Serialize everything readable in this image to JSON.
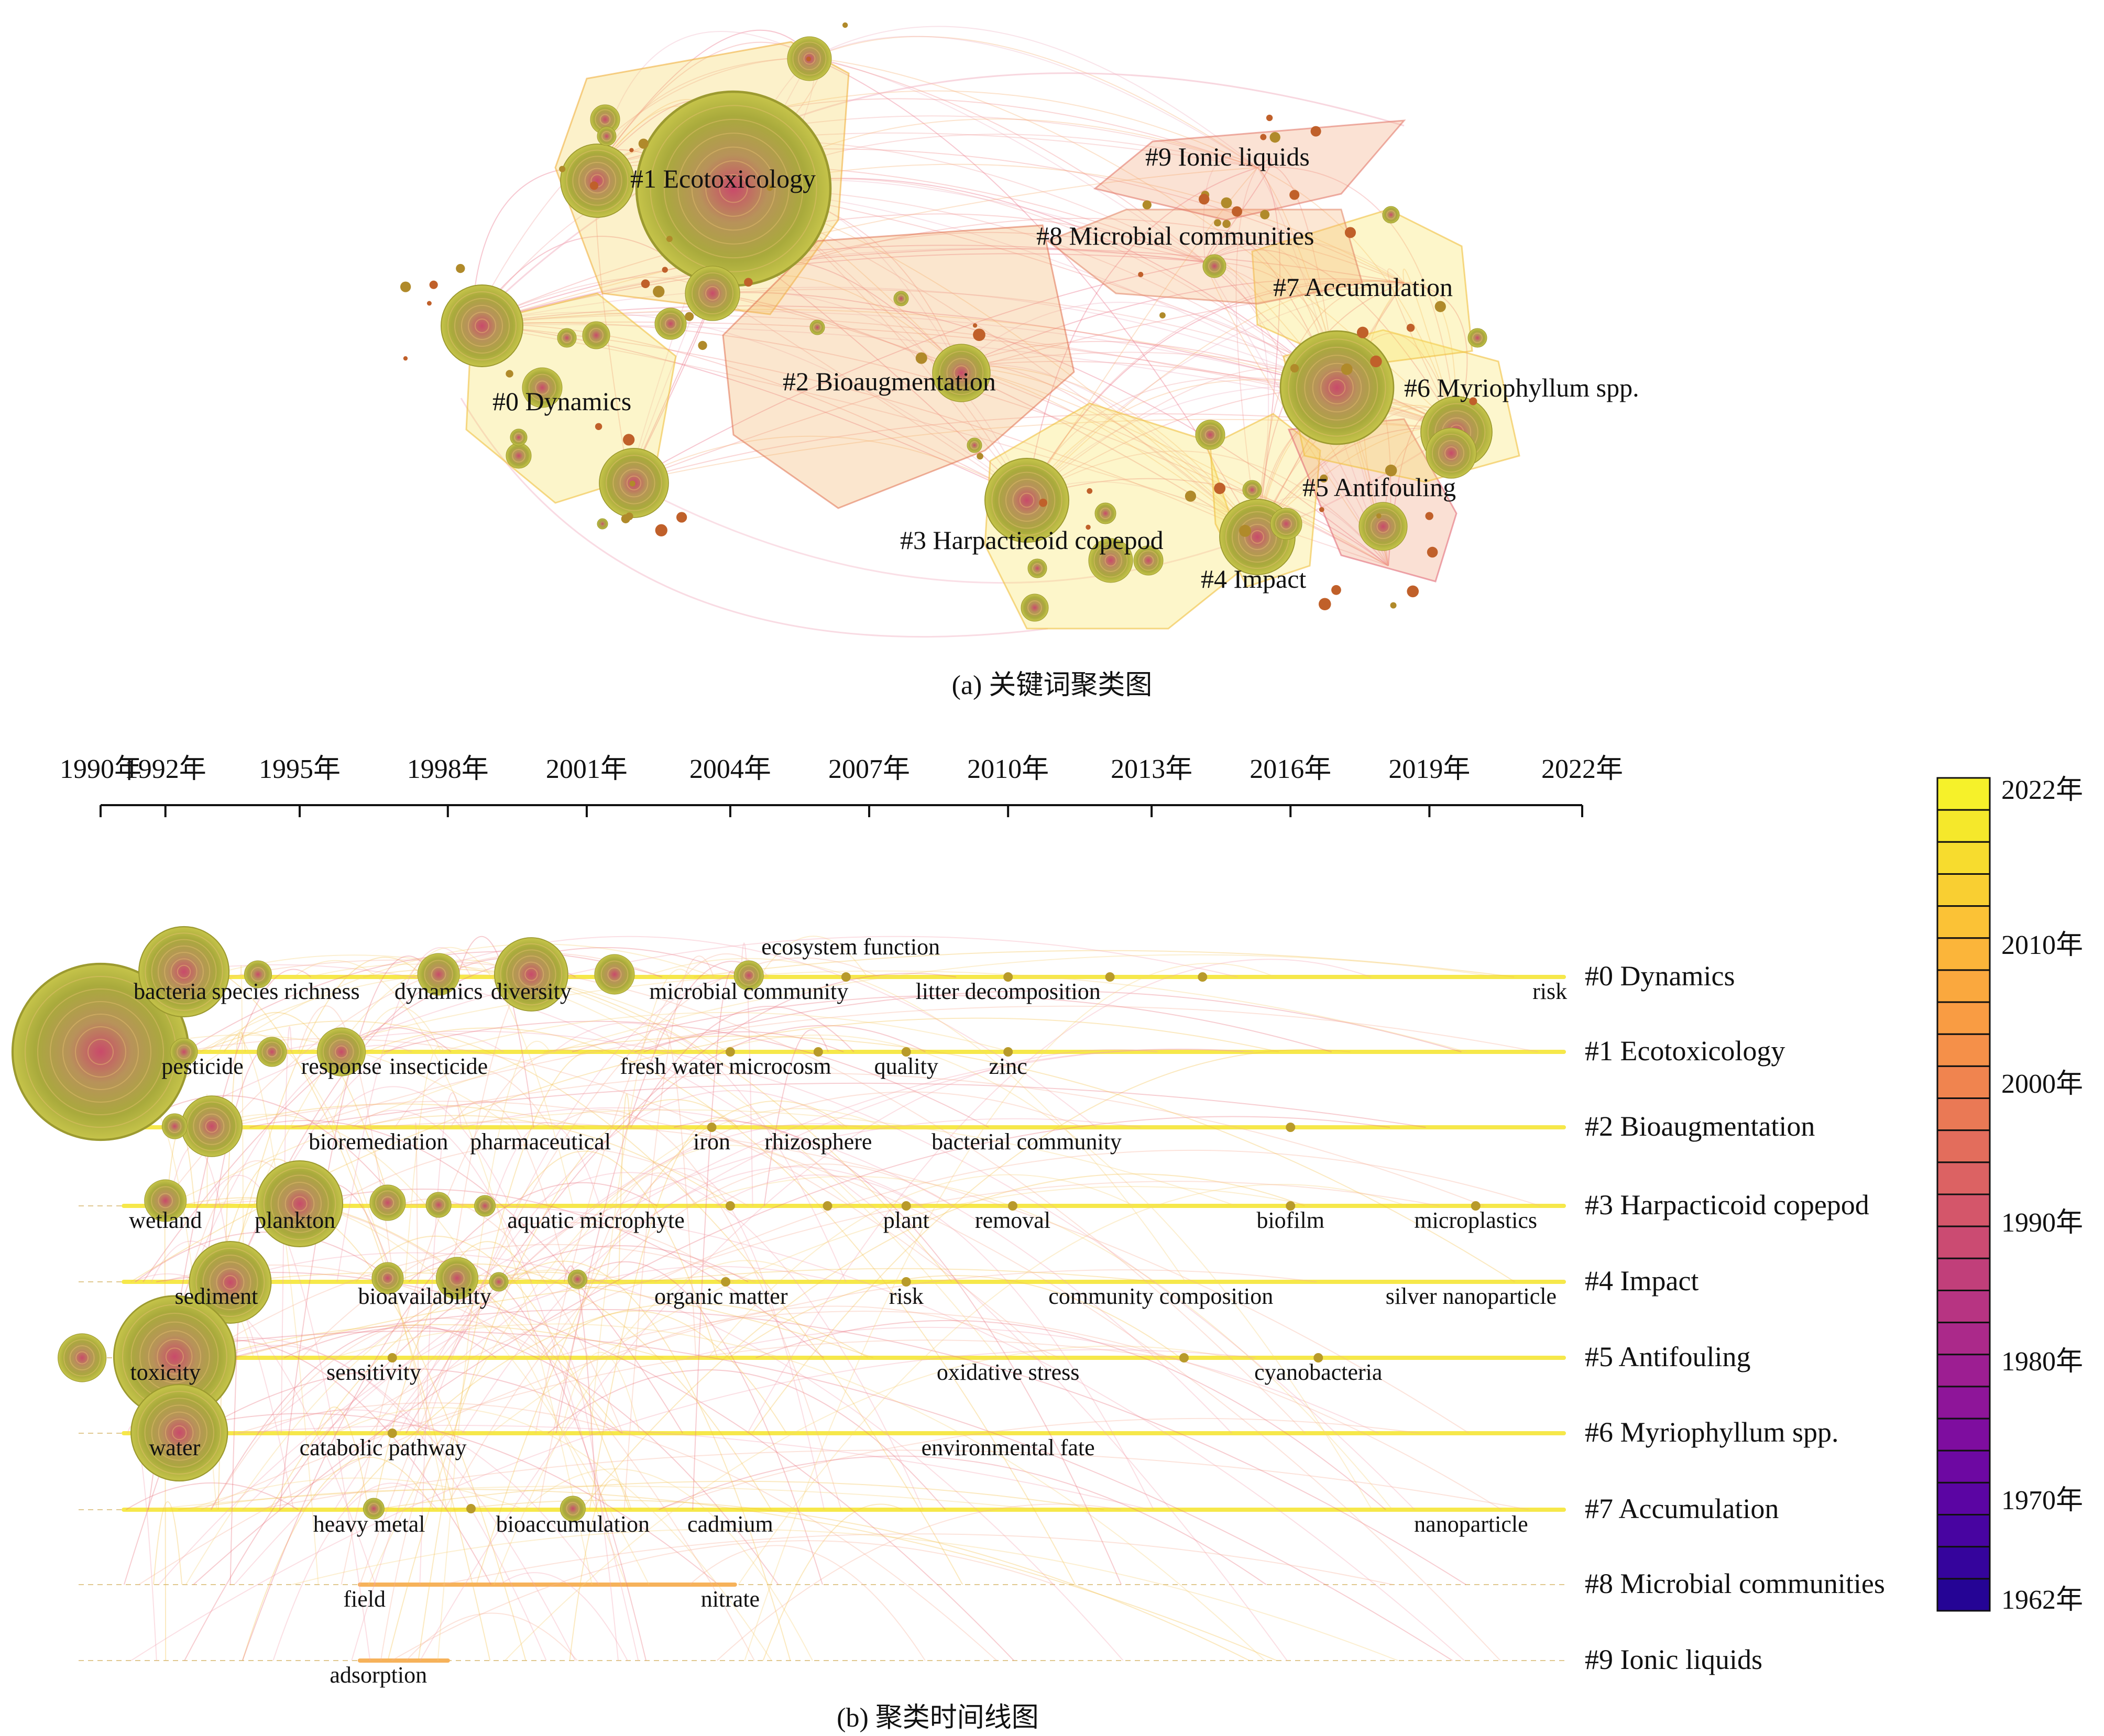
{
  "panel_a": {
    "caption": "(a) 关键词聚类图",
    "clusters": [
      {
        "id": 0,
        "label": "#0 Dynamics"
      },
      {
        "id": 1,
        "label": "#1 Ecotoxicology"
      },
      {
        "id": 2,
        "label": "#2 Bioaugmentation"
      },
      {
        "id": 3,
        "label": "#3 Harpacticoid copepod"
      },
      {
        "id": 4,
        "label": "#4 Impact"
      },
      {
        "id": 5,
        "label": "#5 Antifouling"
      },
      {
        "id": 6,
        "label": "#6 Myriophyllum spp."
      },
      {
        "id": 7,
        "label": "#7 Accumulation"
      },
      {
        "id": 8,
        "label": "#8 Microbial communities"
      },
      {
        "id": 9,
        "label": "#9 Ionic liquids"
      }
    ]
  },
  "panel_b": {
    "caption": "(b) 聚类时间线图",
    "axis_ticks": [
      {
        "label": "1990年",
        "year": 1990
      },
      {
        "label": "1992年",
        "year": 1991.4
      },
      {
        "label": "1995年",
        "year": 1994.3
      },
      {
        "label": "1998年",
        "year": 1997.5
      },
      {
        "label": "2001年",
        "year": 2000.5
      },
      {
        "label": "2004年",
        "year": 2003.6
      },
      {
        "label": "2007年",
        "year": 2006.6
      },
      {
        "label": "2010年",
        "year": 2009.6
      },
      {
        "label": "2013年",
        "year": 2012.7
      },
      {
        "label": "2016年",
        "year": 2015.7
      },
      {
        "label": "2019年",
        "year": 2018.7
      },
      {
        "label": "2022年",
        "year": 2022
      }
    ],
    "rows": [
      {
        "label": "#0 Dynamics",
        "keywords": [
          {
            "text": "bacteria",
            "year": 1991.5
          },
          {
            "text": "species richness",
            "year": 1994
          },
          {
            "text": "dynamics",
            "year": 1997.3
          },
          {
            "text": "diversity",
            "year": 1999.3
          },
          {
            "text": "microbial community",
            "year": 2004
          },
          {
            "text": "ecosystem function",
            "year": 2006.2,
            "upper": true
          },
          {
            "text": "litter decomposition",
            "year": 2009.6
          },
          {
            "text": "risk",
            "year": 2021.3
          }
        ]
      },
      {
        "label": "#1 Ecotoxicology",
        "keywords": [
          {
            "text": "pesticide",
            "year": 1992.2
          },
          {
            "text": "response",
            "year": 1995.2
          },
          {
            "text": "insecticide",
            "year": 1997.3
          },
          {
            "text": "fresh water microcosm",
            "year": 2003.5
          },
          {
            "text": "quality",
            "year": 2007.4
          },
          {
            "text": "zinc",
            "year": 2009.6
          }
        ]
      },
      {
        "label": "#2 Bioaugmentation",
        "keywords": [
          {
            "text": "bioremediation",
            "year": 1996
          },
          {
            "text": "pharmaceutical",
            "year": 1999.5
          },
          {
            "text": "iron",
            "year": 2003.2
          },
          {
            "text": "rhizosphere",
            "year": 2005.5
          },
          {
            "text": "bacterial community",
            "year": 2010
          }
        ]
      },
      {
        "label": "#3 Harpacticoid copepod",
        "keywords": [
          {
            "text": "wetland",
            "year": 1991.4
          },
          {
            "text": "plankton",
            "year": 1994.2
          },
          {
            "text": "aquatic microphyte",
            "year": 2000.7
          },
          {
            "text": "plant",
            "year": 2007.4
          },
          {
            "text": "removal",
            "year": 2009.7
          },
          {
            "text": "biofilm",
            "year": 2015.7
          },
          {
            "text": "microplastics",
            "year": 2019.7
          }
        ]
      },
      {
        "label": "#4 Impact",
        "keywords": [
          {
            "text": "sediment",
            "year": 1992.5
          },
          {
            "text": "bioavailability",
            "year": 1997
          },
          {
            "text": "organic matter",
            "year": 2003.4
          },
          {
            "text": "risk",
            "year": 2007.4
          },
          {
            "text": "community composition",
            "year": 2012.9
          },
          {
            "text": "silver nanoparticle",
            "year": 2019.6
          }
        ]
      },
      {
        "label": "#5 Antifouling",
        "keywords": [
          {
            "text": "toxicity",
            "year": 1991.4
          },
          {
            "text": "sensitivity",
            "year": 1995.9
          },
          {
            "text": "oxidative stress",
            "year": 2009.6
          },
          {
            "text": "cyanobacteria",
            "year": 2016.3
          }
        ]
      },
      {
        "label": "#6 Myriophyllum spp.",
        "keywords": [
          {
            "text": "water",
            "year": 1991.6
          },
          {
            "text": "catabolic pathway",
            "year": 1996.1
          },
          {
            "text": "environmental fate",
            "year": 2009.6
          }
        ]
      },
      {
        "label": "#7 Accumulation",
        "keywords": [
          {
            "text": "heavy metal",
            "year": 1995.8
          },
          {
            "text": "bioaccumulation",
            "year": 2000.2
          },
          {
            "text": "cadmium",
            "year": 2003.6
          },
          {
            "text": "nanoparticle",
            "year": 2019.6
          }
        ]
      },
      {
        "label": "#8 Microbial communities",
        "keywords": [
          {
            "text": "field",
            "year": 1995.7
          },
          {
            "text": "nitrate",
            "year": 2003.6
          }
        ]
      },
      {
        "label": "#9 Ionic liquids",
        "keywords": [
          {
            "text": "adsorption",
            "year": 1996
          }
        ]
      }
    ],
    "legend": {
      "labels": [
        {
          "text": "2022年",
          "year": 2022
        },
        {
          "text": "2010年",
          "year": 2010
        },
        {
          "text": "2000年",
          "year": 2000
        },
        {
          "text": "1990年",
          "year": 1990
        },
        {
          "text": "1980年",
          "year": 1980
        },
        {
          "text": "1970年",
          "year": 1970
        },
        {
          "text": "1962年",
          "year": 1962
        }
      ],
      "colors_top_to_bottom": [
        "#f6f12a",
        "#f5e82b",
        "#f7dc2e",
        "#f9cf32",
        "#fbc236",
        "#fbb53a",
        "#faa83e",
        "#f99c43",
        "#f59049",
        "#f0844f",
        "#ea7955",
        "#e36d5c",
        "#dc6263",
        "#d4566a",
        "#cb4b72",
        "#c13f7a",
        "#b73482",
        "#ab298a",
        "#9d1e92",
        "#8e1599",
        "#7e0d9f",
        "#6d08a2",
        "#5b05a3",
        "#4804a1",
        "#35049c",
        "#250495"
      ]
    }
  }
}
